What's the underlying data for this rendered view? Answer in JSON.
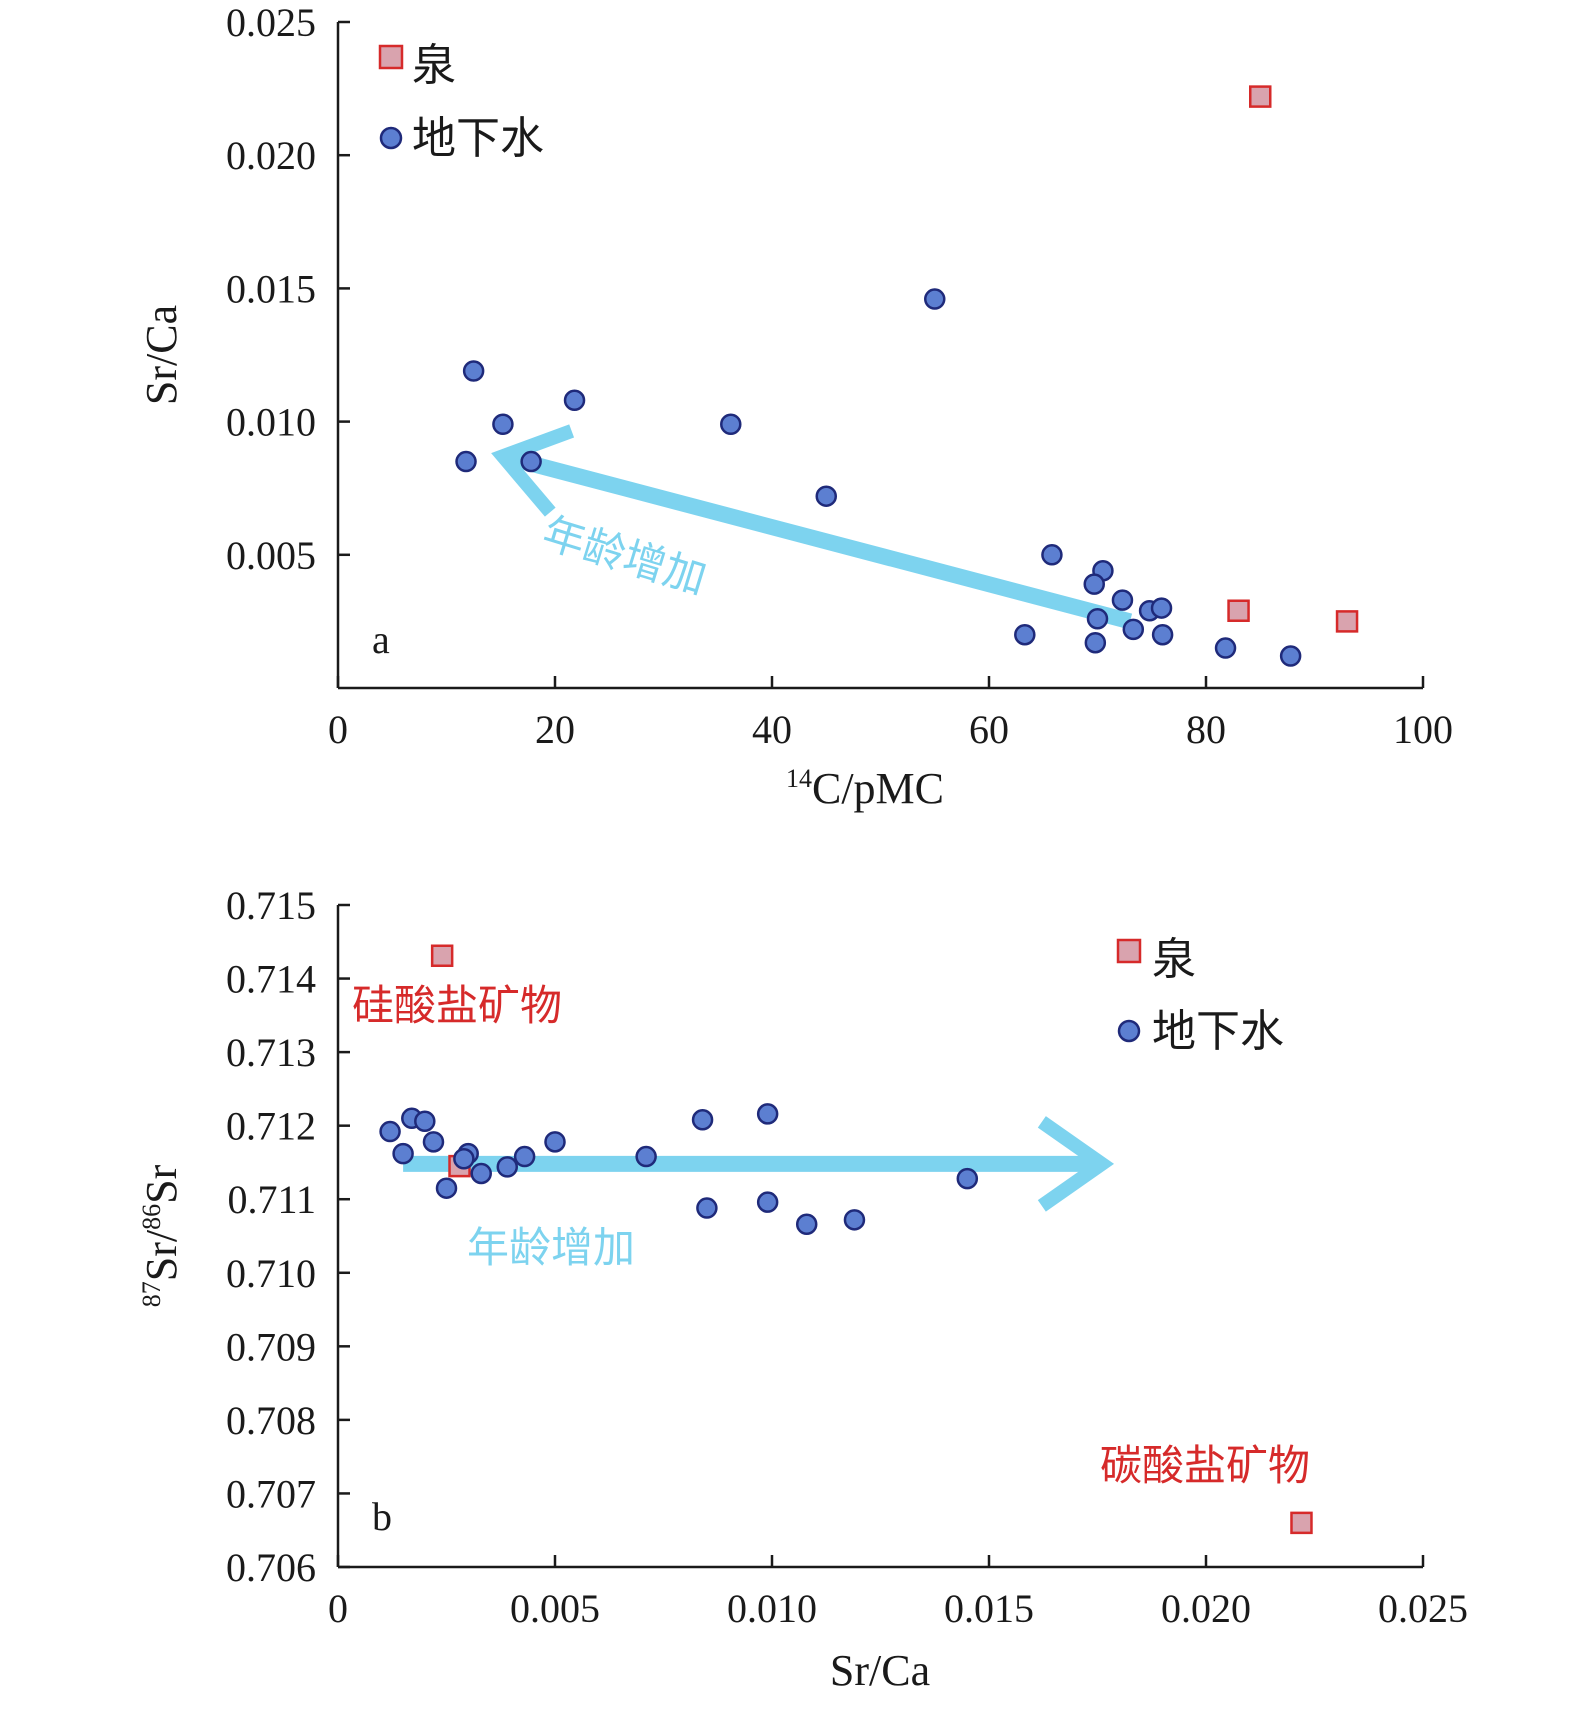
{
  "colors": {
    "spring_fill": "#d9a3ae",
    "spring_stroke": "#d62a2a",
    "gw_fill": "#5c7fd1",
    "gw_stroke": "#1f2a7a",
    "arrow": "#7dd3ef",
    "anno_red": "#d62a2a",
    "axis": "#1a1a1a"
  },
  "chart_data": [
    {
      "type": "scatter",
      "panel_label": "a",
      "xlabel_sup": "14",
      "xlabel_main": "C/pMC",
      "ylabel": "Sr/Ca",
      "xlim": [
        0,
        100
      ],
      "ylim": [
        0,
        0.025
      ],
      "xticks": [
        0,
        20,
        40,
        60,
        80,
        100
      ],
      "xtick_labels": [
        "0",
        "20",
        "40",
        "60",
        "80",
        "100"
      ],
      "yticks": [
        0.005,
        0.01,
        0.015,
        0.02,
        0.025
      ],
      "ytick_labels": [
        "0.005",
        "0.010",
        "0.015",
        "0.020",
        "0.025"
      ],
      "legend_position": "top-left",
      "series": [
        {
          "name": "泉",
          "marker": "square",
          "points": [
            [
              85.0,
              0.0222
            ],
            [
              83.0,
              0.0029
            ],
            [
              93.0,
              0.0025
            ]
          ]
        },
        {
          "name": "地下水",
          "marker": "circle",
          "points": [
            [
              12.5,
              0.0119
            ],
            [
              15.2,
              0.0099
            ],
            [
              21.8,
              0.0108
            ],
            [
              11.8,
              0.0085
            ],
            [
              17.8,
              0.0085
            ],
            [
              36.2,
              0.0099
            ],
            [
              45.0,
              0.0072
            ],
            [
              55.0,
              0.0146
            ],
            [
              65.8,
              0.005
            ],
            [
              70.5,
              0.0044
            ],
            [
              69.7,
              0.0039
            ],
            [
              72.3,
              0.0033
            ],
            [
              74.8,
              0.0029
            ],
            [
              75.9,
              0.003
            ],
            [
              70.0,
              0.0026
            ],
            [
              73.3,
              0.0022
            ],
            [
              63.3,
              0.002
            ],
            [
              76.0,
              0.002
            ],
            [
              69.8,
              0.0017
            ],
            [
              81.8,
              0.0015
            ],
            [
              87.8,
              0.0012
            ]
          ]
        }
      ],
      "annotations": [
        {
          "text": "年龄增加",
          "arrow_from": [
            73,
            0.0025
          ],
          "arrow_to": [
            15.2,
            0.0087
          ]
        }
      ]
    },
    {
      "type": "scatter",
      "panel_label": "b",
      "xlabel": "Sr/Ca",
      "ylabel_sup1": "87",
      "ylabel_mid": "Sr/",
      "ylabel_sup2": "86",
      "ylabel_end": "Sr",
      "xlim": [
        0,
        0.025
      ],
      "ylim": [
        0.706,
        0.715
      ],
      "xticks": [
        0,
        0.005,
        0.01,
        0.015,
        0.02,
        0.025
      ],
      "xtick_labels": [
        "0",
        "0.005",
        "0.010",
        "0.015",
        "0.020",
        "0.025"
      ],
      "yticks": [
        0.706,
        0.707,
        0.708,
        0.709,
        0.71,
        0.711,
        0.712,
        0.713,
        0.714,
        0.715
      ],
      "ytick_labels": [
        "0.706",
        "0.707",
        "0.708",
        "0.709",
        "0.710",
        "0.711",
        "0.712",
        "0.713",
        "0.714",
        "0.715"
      ],
      "legend_position": "top-right",
      "series": [
        {
          "name": "泉",
          "marker": "square",
          "points": [
            [
              0.0024,
              0.71431
            ],
            [
              0.0028,
              0.71145
            ],
            [
              0.0222,
              0.7066
            ]
          ]
        },
        {
          "name": "地下水",
          "marker": "circle",
          "points": [
            [
              0.0012,
              0.71192
            ],
            [
              0.0015,
              0.71162
            ],
            [
              0.0017,
              0.7121
            ],
            [
              0.002,
              0.71206
            ],
            [
              0.0022,
              0.71178
            ],
            [
              0.0025,
              0.71115
            ],
            [
              0.003,
              0.71162
            ],
            [
              0.0029,
              0.71155
            ],
            [
              0.0033,
              0.71135
            ],
            [
              0.0039,
              0.71144
            ],
            [
              0.0043,
              0.71158
            ],
            [
              0.005,
              0.71178
            ],
            [
              0.0071,
              0.71158
            ],
            [
              0.0084,
              0.71208
            ],
            [
              0.0085,
              0.71088
            ],
            [
              0.0099,
              0.71216
            ],
            [
              0.0099,
              0.71096
            ],
            [
              0.0108,
              0.71066
            ],
            [
              0.0119,
              0.71072
            ],
            [
              0.0145,
              0.71128
            ]
          ]
        }
      ],
      "annotations": [
        {
          "text": "年龄增加",
          "arrow_from": [
            0.0015,
            0.71148
          ],
          "arrow_to": [
            0.0176,
            0.71148
          ]
        },
        {
          "text": "硅酸盐矿物"
        },
        {
          "text": "碳酸盐矿物"
        }
      ]
    }
  ]
}
